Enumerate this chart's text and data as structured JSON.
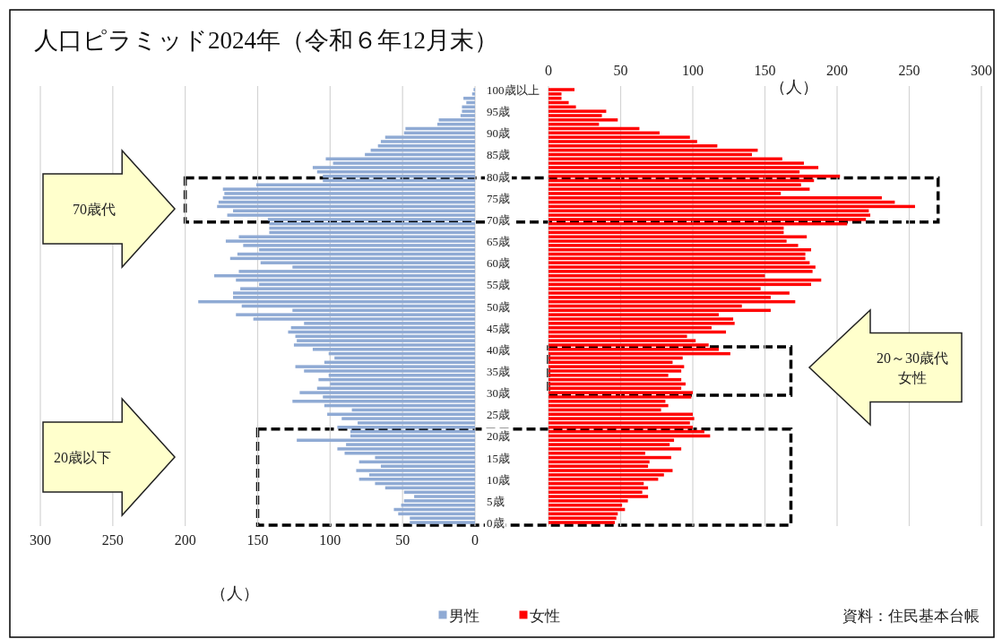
{
  "chart_data": [
    {
      "type": "bar",
      "orientation": "horizontal",
      "title": "人口ピラミッド2024年（令和６年12月末）",
      "xlabel": "（人）",
      "categories": [
        "100歳以上",
        null,
        null,
        null,
        null,
        "95歳",
        null,
        null,
        null,
        null,
        "90歳",
        null,
        null,
        null,
        null,
        "85歳",
        null,
        null,
        null,
        null,
        "80歳",
        null,
        null,
        null,
        null,
        "75歳",
        null,
        null,
        null,
        null,
        "70歳",
        null,
        null,
        null,
        null,
        "65歳",
        null,
        null,
        null,
        null,
        "60歳",
        null,
        null,
        null,
        null,
        "55歳",
        null,
        null,
        null,
        null,
        "50歳",
        null,
        null,
        null,
        null,
        "45歳",
        null,
        null,
        null,
        null,
        "40歳",
        null,
        null,
        null,
        null,
        "35歳",
        null,
        null,
        null,
        null,
        "30歳",
        null,
        null,
        null,
        null,
        "25歳",
        null,
        null,
        null,
        null,
        "20歳",
        null,
        null,
        null,
        null,
        "15歳",
        null,
        null,
        null,
        null,
        "10歳",
        null,
        null,
        null,
        null,
        "5歳",
        null,
        null,
        null,
        null,
        "0歳"
      ],
      "series": [
        {
          "name": "男性",
          "color": "#8faad4",
          "values": [
            1,
            2,
            8,
            6,
            9,
            9,
            10,
            25,
            26,
            48,
            49,
            62,
            65,
            67,
            72,
            76,
            103,
            98,
            112,
            109,
            105,
            105,
            151,
            174,
            173,
            174,
            177,
            178,
            167,
            171,
            143,
            142,
            142,
            142,
            163,
            172,
            160,
            149,
            164,
            169,
            148,
            126,
            163,
            180,
            165,
            149,
            162,
            167,
            167,
            191,
            161,
            126,
            165,
            153,
            118,
            127,
            129,
            124,
            123,
            125,
            112,
            101,
            97,
            104,
            124,
            118,
            101,
            108,
            100,
            109,
            121,
            105,
            126,
            104,
            85,
            102,
            92,
            81,
            95,
            86,
            86,
            123,
            89,
            95,
            90,
            69,
            80,
            65,
            82,
            73,
            80,
            69,
            62,
            49,
            42,
            49,
            51,
            56,
            53,
            45,
            45
          ]
        }
      ],
      "xlim": [
        300,
        0
      ],
      "xticks": [
        300,
        250,
        200,
        150,
        100,
        50,
        0
      ],
      "grid": "x",
      "legend": "bottom",
      "annotations": [
        "70歳代",
        "20歳以下"
      ]
    },
    {
      "type": "bar",
      "orientation": "horizontal",
      "xlabel": "（人）",
      "categories": [
        null,
        null,
        null,
        null,
        null,
        null,
        null,
        null,
        null,
        null,
        null,
        null,
        null,
        null,
        null,
        null,
        null,
        null,
        null,
        null,
        null,
        null,
        null,
        null,
        null,
        null,
        null,
        null,
        null,
        null,
        null,
        null,
        null,
        null,
        null,
        null,
        null,
        null,
        null,
        null,
        null,
        null,
        null,
        null,
        null,
        null,
        null,
        null,
        null,
        null,
        null,
        null,
        null,
        null,
        null,
        null,
        null,
        null,
        null,
        null,
        null,
        null,
        null,
        null,
        null,
        null,
        null,
        null,
        null,
        null,
        null,
        null,
        null,
        null,
        null,
        null,
        null,
        null,
        null,
        null,
        null,
        null,
        null,
        null,
        null,
        null,
        null,
        null,
        null,
        null,
        null,
        null,
        null,
        null,
        null,
        null,
        null,
        null,
        null,
        null,
        null
      ],
      "series": [
        {
          "name": "女性",
          "color": "#ff0000",
          "values": [
            18,
            9,
            9,
            14,
            19,
            40,
            37,
            48,
            35,
            63,
            77,
            98,
            103,
            117,
            145,
            141,
            162,
            177,
            187,
            174,
            202,
            184,
            175,
            181,
            161,
            231,
            240,
            254,
            222,
            223,
            220,
            207,
            163,
            163,
            179,
            165,
            173,
            182,
            178,
            178,
            181,
            185,
            183,
            150,
            189,
            182,
            147,
            167,
            154,
            171,
            134,
            154,
            118,
            128,
            129,
            113,
            123,
            96,
            102,
            111,
            118,
            126,
            93,
            86,
            94,
            92,
            83,
            92,
            95,
            92,
            100,
            99,
            81,
            83,
            78,
            100,
            101,
            98,
            100,
            108,
            112,
            87,
            84,
            92,
            67,
            85,
            70,
            69,
            86,
            80,
            76,
            66,
            69,
            65,
            69,
            55,
            51,
            53,
            48,
            47,
            46
          ]
        }
      ],
      "xlim": [
        0,
        300
      ],
      "xticks": [
        0,
        50,
        100,
        150,
        200,
        250,
        300
      ],
      "grid": "x",
      "legend": "bottom",
      "tick_labels": "x",
      "annotations": [
        "20～30歳代",
        "女性",
        "資料：住民基本台帳"
      ]
    }
  ]
}
